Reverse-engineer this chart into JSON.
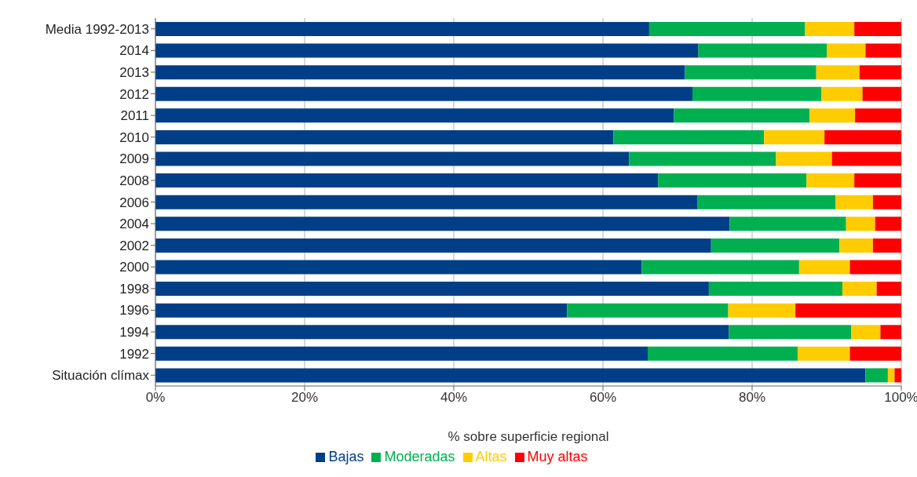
{
  "chart_data": {
    "type": "bar",
    "orientation": "horizontal",
    "stacked": true,
    "categories": [
      "Media 1992-2013",
      "2014",
      "2013",
      "2012",
      "2011",
      "2010",
      "2009",
      "2008",
      "2006",
      "2004",
      "2002",
      "2000",
      "1998",
      "1996",
      "1994",
      "1992",
      "Situación clímax"
    ],
    "series": [
      {
        "name": "Bajas",
        "color": "#003f87",
        "values": [
          66.2,
          72.8,
          71.0,
          72.0,
          69.5,
          61.4,
          63.5,
          67.4,
          72.7,
          77.0,
          74.5,
          65.2,
          74.2,
          55.2,
          76.9,
          66.0,
          95.2
        ]
      },
      {
        "name": "Moderadas",
        "color": "#00b050",
        "values": [
          20.9,
          17.2,
          17.6,
          17.3,
          18.2,
          20.2,
          19.7,
          19.9,
          18.5,
          15.6,
          17.2,
          21.1,
          17.9,
          21.6,
          16.4,
          20.1,
          3.0
        ]
      },
      {
        "name": "Altas",
        "color": "#ffcc00",
        "values": [
          6.6,
          5.2,
          5.8,
          5.5,
          6.1,
          8.1,
          7.5,
          6.4,
          5.0,
          3.9,
          4.5,
          6.8,
          4.6,
          9.0,
          3.9,
          7.0,
          0.9
        ]
      },
      {
        "name": "Muy altas",
        "color": "#ff0000",
        "values": [
          6.3,
          4.8,
          5.6,
          5.2,
          6.2,
          10.3,
          9.3,
          6.3,
          3.8,
          3.5,
          3.8,
          6.9,
          3.3,
          14.2,
          2.8,
          6.9,
          0.9
        ]
      }
    ],
    "xlim": [
      0,
      100
    ],
    "xticks": [
      {
        "value": 0,
        "label": "0%"
      },
      {
        "value": 20,
        "label": "20%"
      },
      {
        "value": 40,
        "label": "40%"
      },
      {
        "value": 60,
        "label": "60%"
      },
      {
        "value": 80,
        "label": "80%"
      },
      {
        "value": 100,
        "label": "100%"
      }
    ],
    "xlabel": "% sobre superficie regional",
    "grid": "x",
    "legend": "bottom"
  }
}
